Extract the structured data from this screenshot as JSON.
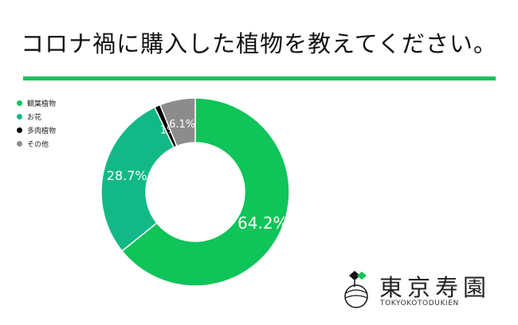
{
  "page_title": "コロナ禍に購入した植物を教えてください。",
  "logo": {
    "name": "東京寿園",
    "romaji": "TOKYOKOTODUKIEN"
  },
  "chart_data": {
    "type": "pie",
    "categories": [
      "観葉植物",
      "お花",
      "多肉植物",
      "その他"
    ],
    "values": [
      64.2,
      28.7,
      1,
      6.1
    ],
    "data_labels": [
      "64.2%",
      "28.7%",
      "1%",
      "6.1%"
    ],
    "colors": [
      "#0fc458",
      "#12b987",
      "#000000",
      "#8c8c8c"
    ],
    "donut": true,
    "start_angle_deg": 0,
    "direction": "clockwise",
    "legend_position": "top-left"
  }
}
